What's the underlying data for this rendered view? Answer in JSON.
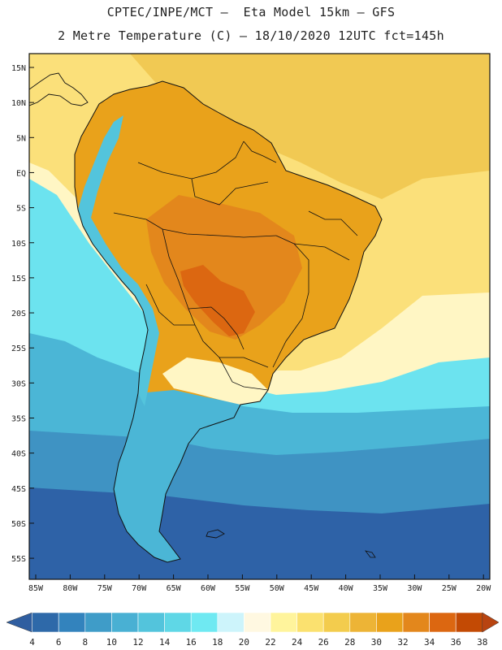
{
  "header": {
    "line1": "CPTEC/INPE/MCT —  Eta Model 15km — GFS",
    "line2": "2 Metre Temperature (C) — 18/10/2020 12UTC fct=145h"
  },
  "axes": {
    "lat_labels": [
      "15N",
      "10N",
      "5N",
      "EQ",
      "5S",
      "10S",
      "15S",
      "20S",
      "25S",
      "30S",
      "35S",
      "40S",
      "45S",
      "50S",
      "55S"
    ],
    "lon_labels": [
      "85W",
      "80W",
      "75W",
      "70W",
      "65W",
      "60W",
      "55W",
      "50W",
      "45W",
      "40W",
      "35W",
      "30W",
      "25W",
      "20W"
    ]
  },
  "legend": {
    "labels": [
      "4",
      "6",
      "8",
      "10",
      "12",
      "14",
      "16",
      "18",
      "20",
      "22",
      "24",
      "26",
      "28",
      "30",
      "32",
      "34",
      "36",
      "38"
    ],
    "colors": [
      "#2e69a9",
      "#3383bd",
      "#3f9cc8",
      "#49b0d3",
      "#53c4dc",
      "#5fd7e6",
      "#6fe9f2",
      "#cdf4fb",
      "#fff8e1",
      "#fff49c",
      "#fbe16f",
      "#f3cc4d",
      "#edb436",
      "#e9a21b",
      "#e3871c",
      "#dc6711",
      "#c34a04"
    ],
    "under_color": "#2f5ea0",
    "over_color": "#b84411"
  },
  "map_colors": {
    "ocean_hot": "#f1c953",
    "ocean_warm": "#fbe07a",
    "ocean_mild": "#fff6c4",
    "ocean_cool": "#6ce3ef",
    "ocean_cold": "#4bb6d6",
    "ocean_colder": "#3f93c3",
    "ocean_coldest": "#2e62a7",
    "land_hot": "#e9a21b",
    "land_very_hot": "#e3871c",
    "land_extreme": "#dc6711",
    "andes": "#53c4dc"
  }
}
